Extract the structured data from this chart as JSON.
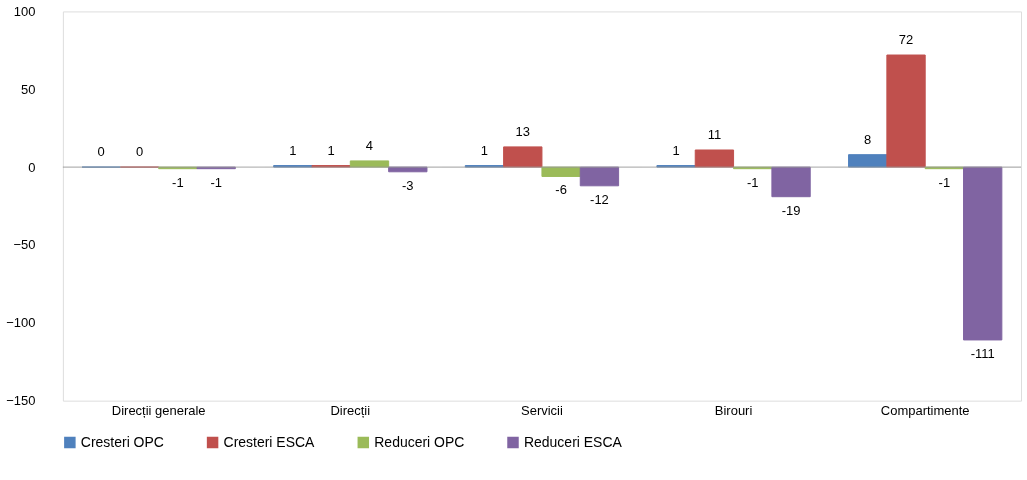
{
  "chart_data": {
    "type": "bar",
    "categories": [
      "Direcții generale",
      "Direcții",
      "Servicii",
      "Birouri",
      "Compartimente"
    ],
    "series": [
      {
        "name": "Cresteri OPC",
        "color": "#4f81bd",
        "values": [
          0,
          1,
          1,
          1,
          8
        ]
      },
      {
        "name": "Cresteri ESCA",
        "color": "#c0504d",
        "values": [
          0,
          1,
          13,
          11,
          72
        ]
      },
      {
        "name": "Reduceri OPC",
        "color": "#9bbb59",
        "values": [
          -1,
          4,
          -6,
          -1,
          -1
        ]
      },
      {
        "name": "Reduceri ESCA",
        "color": "#8064a2",
        "values": [
          -1,
          -3,
          -12,
          -19,
          -111
        ]
      }
    ],
    "ylim": [
      -150,
      100
    ],
    "yticks": [
      -150,
      -100,
      -50,
      0,
      50,
      100
    ],
    "grid": false,
    "ref_lines": [
      {
        "axis": "y",
        "value": 0,
        "color": "#999999"
      }
    ],
    "data_labels": true,
    "legend": "bottom"
  }
}
